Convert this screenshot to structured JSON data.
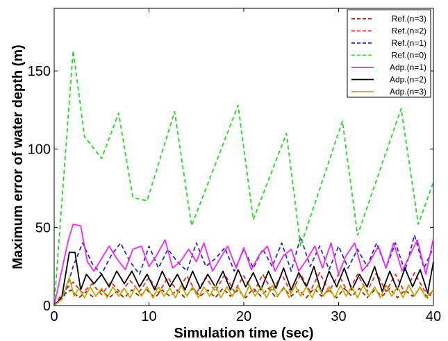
{
  "chart_data": {
    "type": "line",
    "xlabel": "Simulation time (sec)",
    "ylabel": "Maximum error of water depth (m)",
    "xlim": [
      0,
      40
    ],
    "ylim": [
      0,
      190
    ],
    "xticks": [
      0,
      10,
      20,
      30,
      40
    ],
    "yticks": [
      0,
      50,
      100,
      150
    ],
    "grid": false,
    "legend_position": "top-right",
    "series": [
      {
        "name": "Ref.(n=3)",
        "color": "#8b2500",
        "dash": "dashed",
        "x": [
          0,
          1,
          1.8,
          2.6,
          3.4,
          4.2,
          5,
          5.8,
          6.6,
          7.4,
          8.2,
          9,
          9.8,
          10.6,
          11.4,
          12.2,
          13,
          13.8,
          14.6,
          15.4,
          16.2,
          17,
          17.8,
          18.6,
          19.4,
          20.2,
          21,
          21.8,
          22.6,
          23.4,
          24.2,
          25,
          25.8,
          26.6,
          27.4,
          28.2,
          29,
          29.8,
          30.6,
          31.4,
          32.2,
          33,
          33.8,
          34.6,
          35.4,
          36.2,
          37,
          37.8,
          38.6,
          39.4,
          40
        ],
        "y": [
          0,
          7,
          10,
          5,
          9,
          5,
          10,
          5,
          9,
          5,
          10,
          6,
          10,
          5,
          10,
          6,
          10,
          5,
          11,
          6,
          10,
          5,
          11,
          6,
          10,
          5,
          11,
          6,
          11,
          5,
          11,
          6,
          10,
          5,
          11,
          6,
          10,
          5,
          11,
          6,
          11,
          5,
          10,
          6,
          11,
          5,
          10,
          6,
          11,
          5,
          10
        ]
      },
      {
        "name": "Ref.(n=2)",
        "color": "#ff2020",
        "dash": "dashed",
        "x": [
          0,
          1,
          2,
          3,
          4,
          5,
          6,
          7,
          8,
          9,
          10,
          11,
          12,
          13,
          14,
          15,
          16,
          17,
          18,
          19,
          20,
          21,
          22,
          23,
          24,
          25,
          26,
          27,
          28,
          29,
          30,
          31,
          32,
          33,
          34,
          35,
          36,
          37,
          38,
          39,
          40
        ],
        "y": [
          0,
          9,
          15,
          8,
          14,
          7,
          15,
          8,
          16,
          9,
          18,
          8,
          18,
          9,
          19,
          8,
          18,
          9,
          20,
          9,
          19,
          8,
          20,
          9,
          20,
          8,
          20,
          9,
          21,
          9,
          20,
          8,
          20,
          9,
          21,
          9,
          20,
          8,
          21,
          10,
          5
        ]
      },
      {
        "name": "Ref.(n=1)",
        "color": "#1f2bd6",
        "dash": "dashed",
        "x": [
          0,
          1,
          2,
          3,
          4,
          5,
          6,
          7,
          8,
          9,
          10,
          11,
          12,
          13,
          14,
          15,
          16,
          17,
          18,
          19,
          20,
          21,
          22,
          23,
          24,
          25,
          26,
          27,
          28,
          29,
          30,
          31,
          32,
          33,
          34,
          35,
          36,
          37,
          38,
          39,
          40
        ],
        "y": [
          0,
          5,
          25,
          40,
          27,
          20,
          32,
          40,
          28,
          20,
          38,
          24,
          36,
          28,
          22,
          40,
          25,
          30,
          37,
          22,
          36,
          24,
          36,
          25,
          40,
          22,
          44,
          25,
          38,
          23,
          38,
          24,
          36,
          25,
          40,
          24,
          40,
          22,
          45,
          24,
          37
        ]
      },
      {
        "name": "Ref.(n=0)",
        "color": "#22dd22",
        "dash": "dashed",
        "x": [
          0,
          2,
          3.2,
          5,
          6.8,
          8.3,
          9.8,
          12.7,
          14.5,
          19.4,
          21,
          24.5,
          26,
          30.4,
          32,
          36.6,
          38.4,
          40
        ],
        "y": [
          0,
          163,
          108,
          94,
          123,
          69,
          67,
          124,
          51,
          128,
          55,
          110,
          38,
          118,
          45,
          126,
          52,
          79
        ]
      },
      {
        "name": "Adp.(n=1)",
        "color": "#ff22ff",
        "dash": "solid",
        "x": [
          0,
          1.5,
          2,
          2.8,
          3.5,
          4.2,
          5,
          5.8,
          6.6,
          7.5,
          8.3,
          9.2,
          10,
          10.8,
          11.7,
          12.5,
          13.3,
          14.2,
          15,
          15.8,
          16.7,
          17.5,
          18.3,
          19.2,
          20,
          20.8,
          21.7,
          22.5,
          23.3,
          24.2,
          25,
          25.8,
          26.7,
          27.5,
          28.3,
          29.2,
          30,
          30.8,
          31.7,
          32.5,
          33.3,
          34.2,
          35,
          35.8,
          36.7,
          37.5,
          38.3,
          39.2,
          40
        ],
        "y": [
          0,
          42,
          52,
          51,
          28,
          22,
          30,
          38,
          30,
          23,
          36,
          38,
          25,
          32,
          42,
          24,
          28,
          36,
          28,
          40,
          22,
          30,
          38,
          24,
          37,
          23,
          33,
          38,
          22,
          32,
          36,
          22,
          30,
          38,
          24,
          40,
          20,
          32,
          40,
          22,
          28,
          38,
          24,
          40,
          22,
          32,
          42,
          20,
          43
        ]
      },
      {
        "name": "Adp.(n=2)",
        "color": "#000000",
        "dash": "solid",
        "x": [
          0,
          0.8,
          1.6,
          2.2,
          2.8,
          3.4,
          4.2,
          5,
          5.8,
          6.6,
          7.4,
          8.2,
          9,
          9.8,
          10.6,
          11.4,
          12.2,
          13,
          13.8,
          14.6,
          15.4,
          16.2,
          17,
          17.8,
          18.6,
          19.4,
          20.2,
          21,
          21.8,
          22.6,
          23.4,
          24.2,
          25,
          25.8,
          26.6,
          27.4,
          28.2,
          29,
          29.8,
          30.6,
          31.4,
          32.2,
          33,
          33.8,
          34.6,
          35.4,
          36.2,
          37,
          37.8,
          38.6,
          39.4,
          40
        ],
        "y": [
          0,
          5,
          34,
          34,
          10,
          20,
          14,
          20,
          12,
          22,
          14,
          22,
          12,
          20,
          10,
          22,
          12,
          20,
          10,
          22,
          11,
          20,
          12,
          22,
          10,
          23,
          12,
          21,
          10,
          22,
          11,
          24,
          10,
          21,
          12,
          25,
          8,
          22,
          12,
          24,
          10,
          20,
          12,
          25,
          9,
          22,
          10,
          24,
          12,
          23,
          8,
          28
        ]
      },
      {
        "name": "Adp.(n=3)",
        "color": "#c8a800",
        "dash": "solid",
        "x": [
          0,
          0.8,
          1.6,
          2.1,
          2.6,
          3.2,
          3.8,
          4.4,
          5,
          5.6,
          6.2,
          6.8,
          7.4,
          8,
          8.6,
          9.2,
          9.8,
          10.4,
          11,
          11.6,
          12.2,
          12.8,
          13.4,
          14,
          14.6,
          15.2,
          15.8,
          16.4,
          17,
          17.6,
          18.2,
          18.8,
          19.4,
          20,
          20.6,
          21.2,
          21.8,
          22.4,
          23,
          23.6,
          24.2,
          24.8,
          25.4,
          26,
          26.6,
          27.2,
          27.8,
          28.4,
          29,
          29.6,
          30.2,
          30.8,
          31.4,
          32,
          32.6,
          33.2,
          33.8,
          34.4,
          35,
          35.6,
          36.2,
          36.8,
          37.4,
          38,
          38.6,
          39.2,
          40
        ],
        "y": [
          0,
          4,
          18,
          6,
          11,
          5,
          12,
          6,
          11,
          5,
          12,
          6,
          11,
          5,
          12,
          6,
          12,
          5,
          12,
          6,
          11,
          5,
          13,
          6,
          12,
          5,
          12,
          6,
          13,
          5,
          12,
          6,
          12,
          5,
          13,
          6,
          12,
          5,
          13,
          6,
          12,
          5,
          13,
          6,
          12,
          5,
          13,
          6,
          12,
          5,
          13,
          6,
          12,
          5,
          13,
          6,
          12,
          5,
          13,
          6,
          12,
          5,
          13,
          6,
          12,
          5,
          10
        ]
      }
    ]
  }
}
